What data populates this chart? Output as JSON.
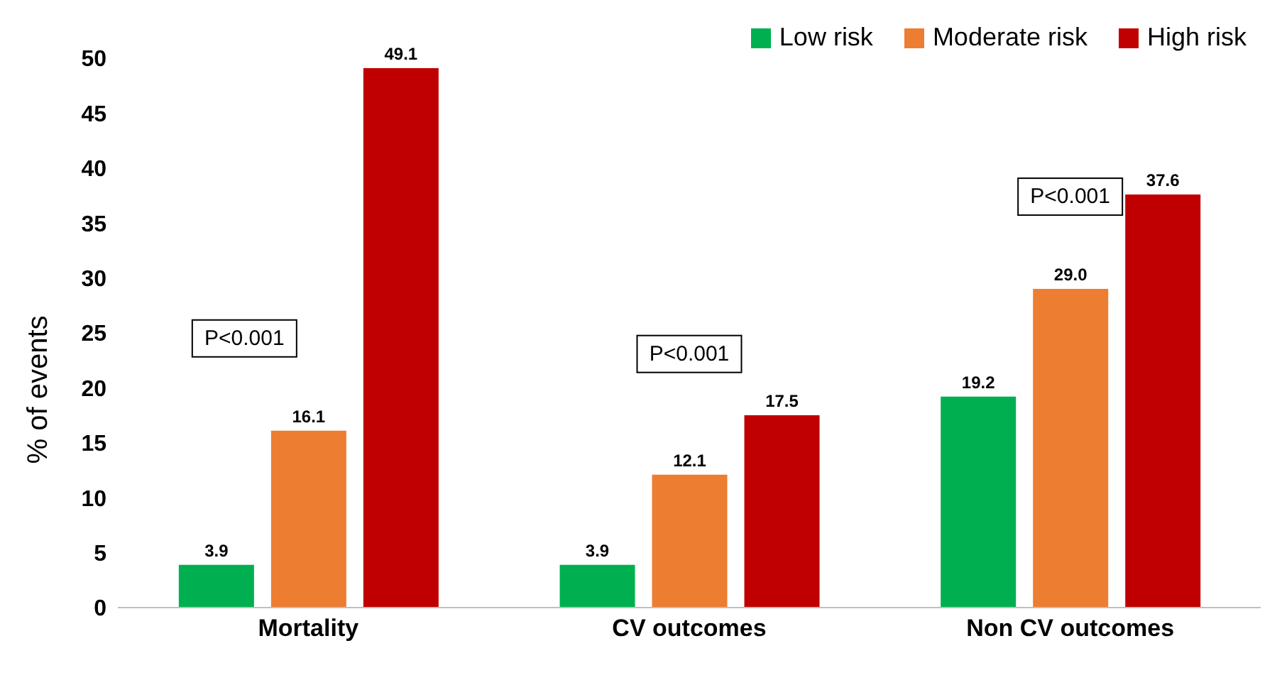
{
  "chart_data": {
    "type": "bar",
    "ylabel": "% of events",
    "categories": [
      "Mortality",
      "CV outcomes",
      "Non CV outcomes"
    ],
    "series": [
      {
        "name": "Low risk",
        "color": "#00b050",
        "values": [
          3.9,
          3.9,
          19.2
        ],
        "value_labels": [
          "3.9",
          "3.9",
          "19.2"
        ]
      },
      {
        "name": "Moderate risk",
        "color": "#ed7d31",
        "values": [
          16.1,
          12.1,
          29
        ],
        "value_labels": [
          "16.1",
          "12.1",
          "29.0"
        ]
      },
      {
        "name": "High risk",
        "color": "#c00000",
        "values": [
          49.1,
          17.5,
          37.6
        ],
        "value_labels": [
          "49.1",
          "17.5",
          "37.6"
        ]
      }
    ],
    "ylim": [
      0,
      50
    ],
    "yticks": [
      0,
      5,
      10,
      15,
      20,
      25,
      30,
      35,
      40,
      45,
      50
    ],
    "grid": false,
    "legend": "top right",
    "annotations": [
      "P<0.001",
      "P<0.001",
      "P<0.001"
    ]
  }
}
